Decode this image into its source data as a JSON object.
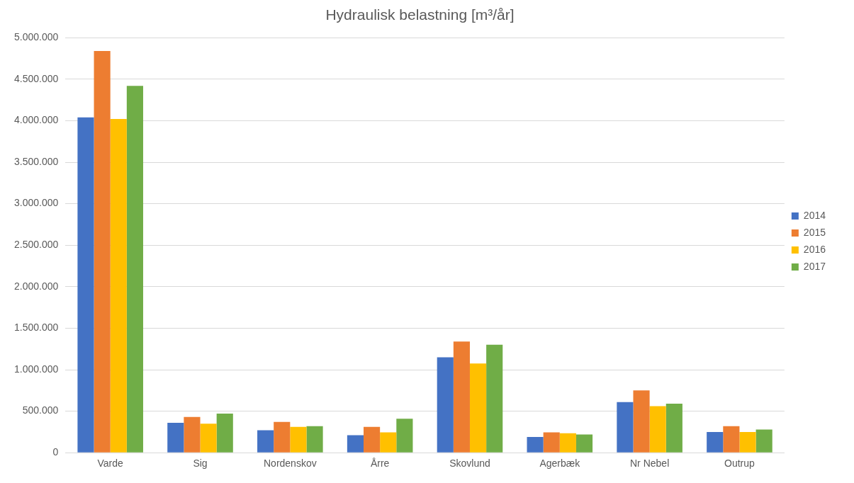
{
  "chart_data": {
    "type": "bar",
    "title": "Hydraulisk belastning [m³/år]",
    "categories": [
      "Varde",
      "Sig",
      "Nordenskov",
      "Årre",
      "Skovlund",
      "Agerbæk",
      "Nr Nebel",
      "Outrup"
    ],
    "series": [
      {
        "name": "2014",
        "color": "#4472c4",
        "values": [
          4040000,
          360000,
          270000,
          210000,
          1150000,
          190000,
          610000,
          250000
        ]
      },
      {
        "name": "2015",
        "color": "#ed7d31",
        "values": [
          4840000,
          430000,
          370000,
          310000,
          1340000,
          245000,
          750000,
          320000
        ]
      },
      {
        "name": "2016",
        "color": "#ffc000",
        "values": [
          4020000,
          350000,
          310000,
          245000,
          1075000,
          235000,
          560000,
          250000
        ]
      },
      {
        "name": "2017",
        "color": "#70ad47",
        "values": [
          4420000,
          470000,
          320000,
          410000,
          1300000,
          220000,
          590000,
          280000
        ]
      }
    ],
    "ylim": [
      0,
      5000000
    ],
    "yticks": [
      0,
      {
        "value": 500000,
        "label": "500.000"
      },
      {
        "value": 1000000,
        "label": "1.000.000"
      },
      {
        "value": 1500000,
        "label": "1.500.000"
      },
      {
        "value": 2000000,
        "label": "2.000.000"
      },
      {
        "value": 2500000,
        "label": "2.500.000"
      },
      {
        "value": 3000000,
        "label": "3.000.000"
      },
      {
        "value": 3500000,
        "label": "3.500.000"
      },
      {
        "value": 4000000,
        "label": "4.000.000"
      },
      {
        "value": 4500000,
        "label": "4.500.000"
      },
      {
        "value": 5000000,
        "label": "5.000.000"
      }
    ],
    "grid": "y",
    "legend": "right"
  }
}
